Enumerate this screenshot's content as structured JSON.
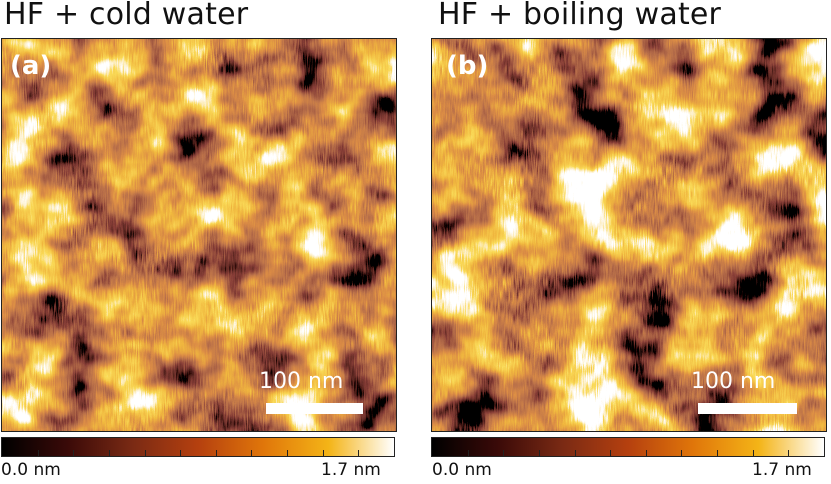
{
  "panels": [
    {
      "title": "HF + cold water",
      "letter": "(a)",
      "scale_bar_label": "100 nm",
      "colorbar_min": "0.0 nm",
      "colorbar_max": "1.7 nm"
    },
    {
      "title": "HF + boiling water",
      "letter": "(b)",
      "scale_bar_label": "100 nm",
      "colorbar_min": "0.0 nm",
      "colorbar_max": "1.7 nm"
    }
  ],
  "colormap": [
    "#000000",
    "#3a0a08",
    "#7a2a14",
    "#b5400f",
    "#e0760a",
    "#f4b417",
    "#ffffff"
  ]
}
